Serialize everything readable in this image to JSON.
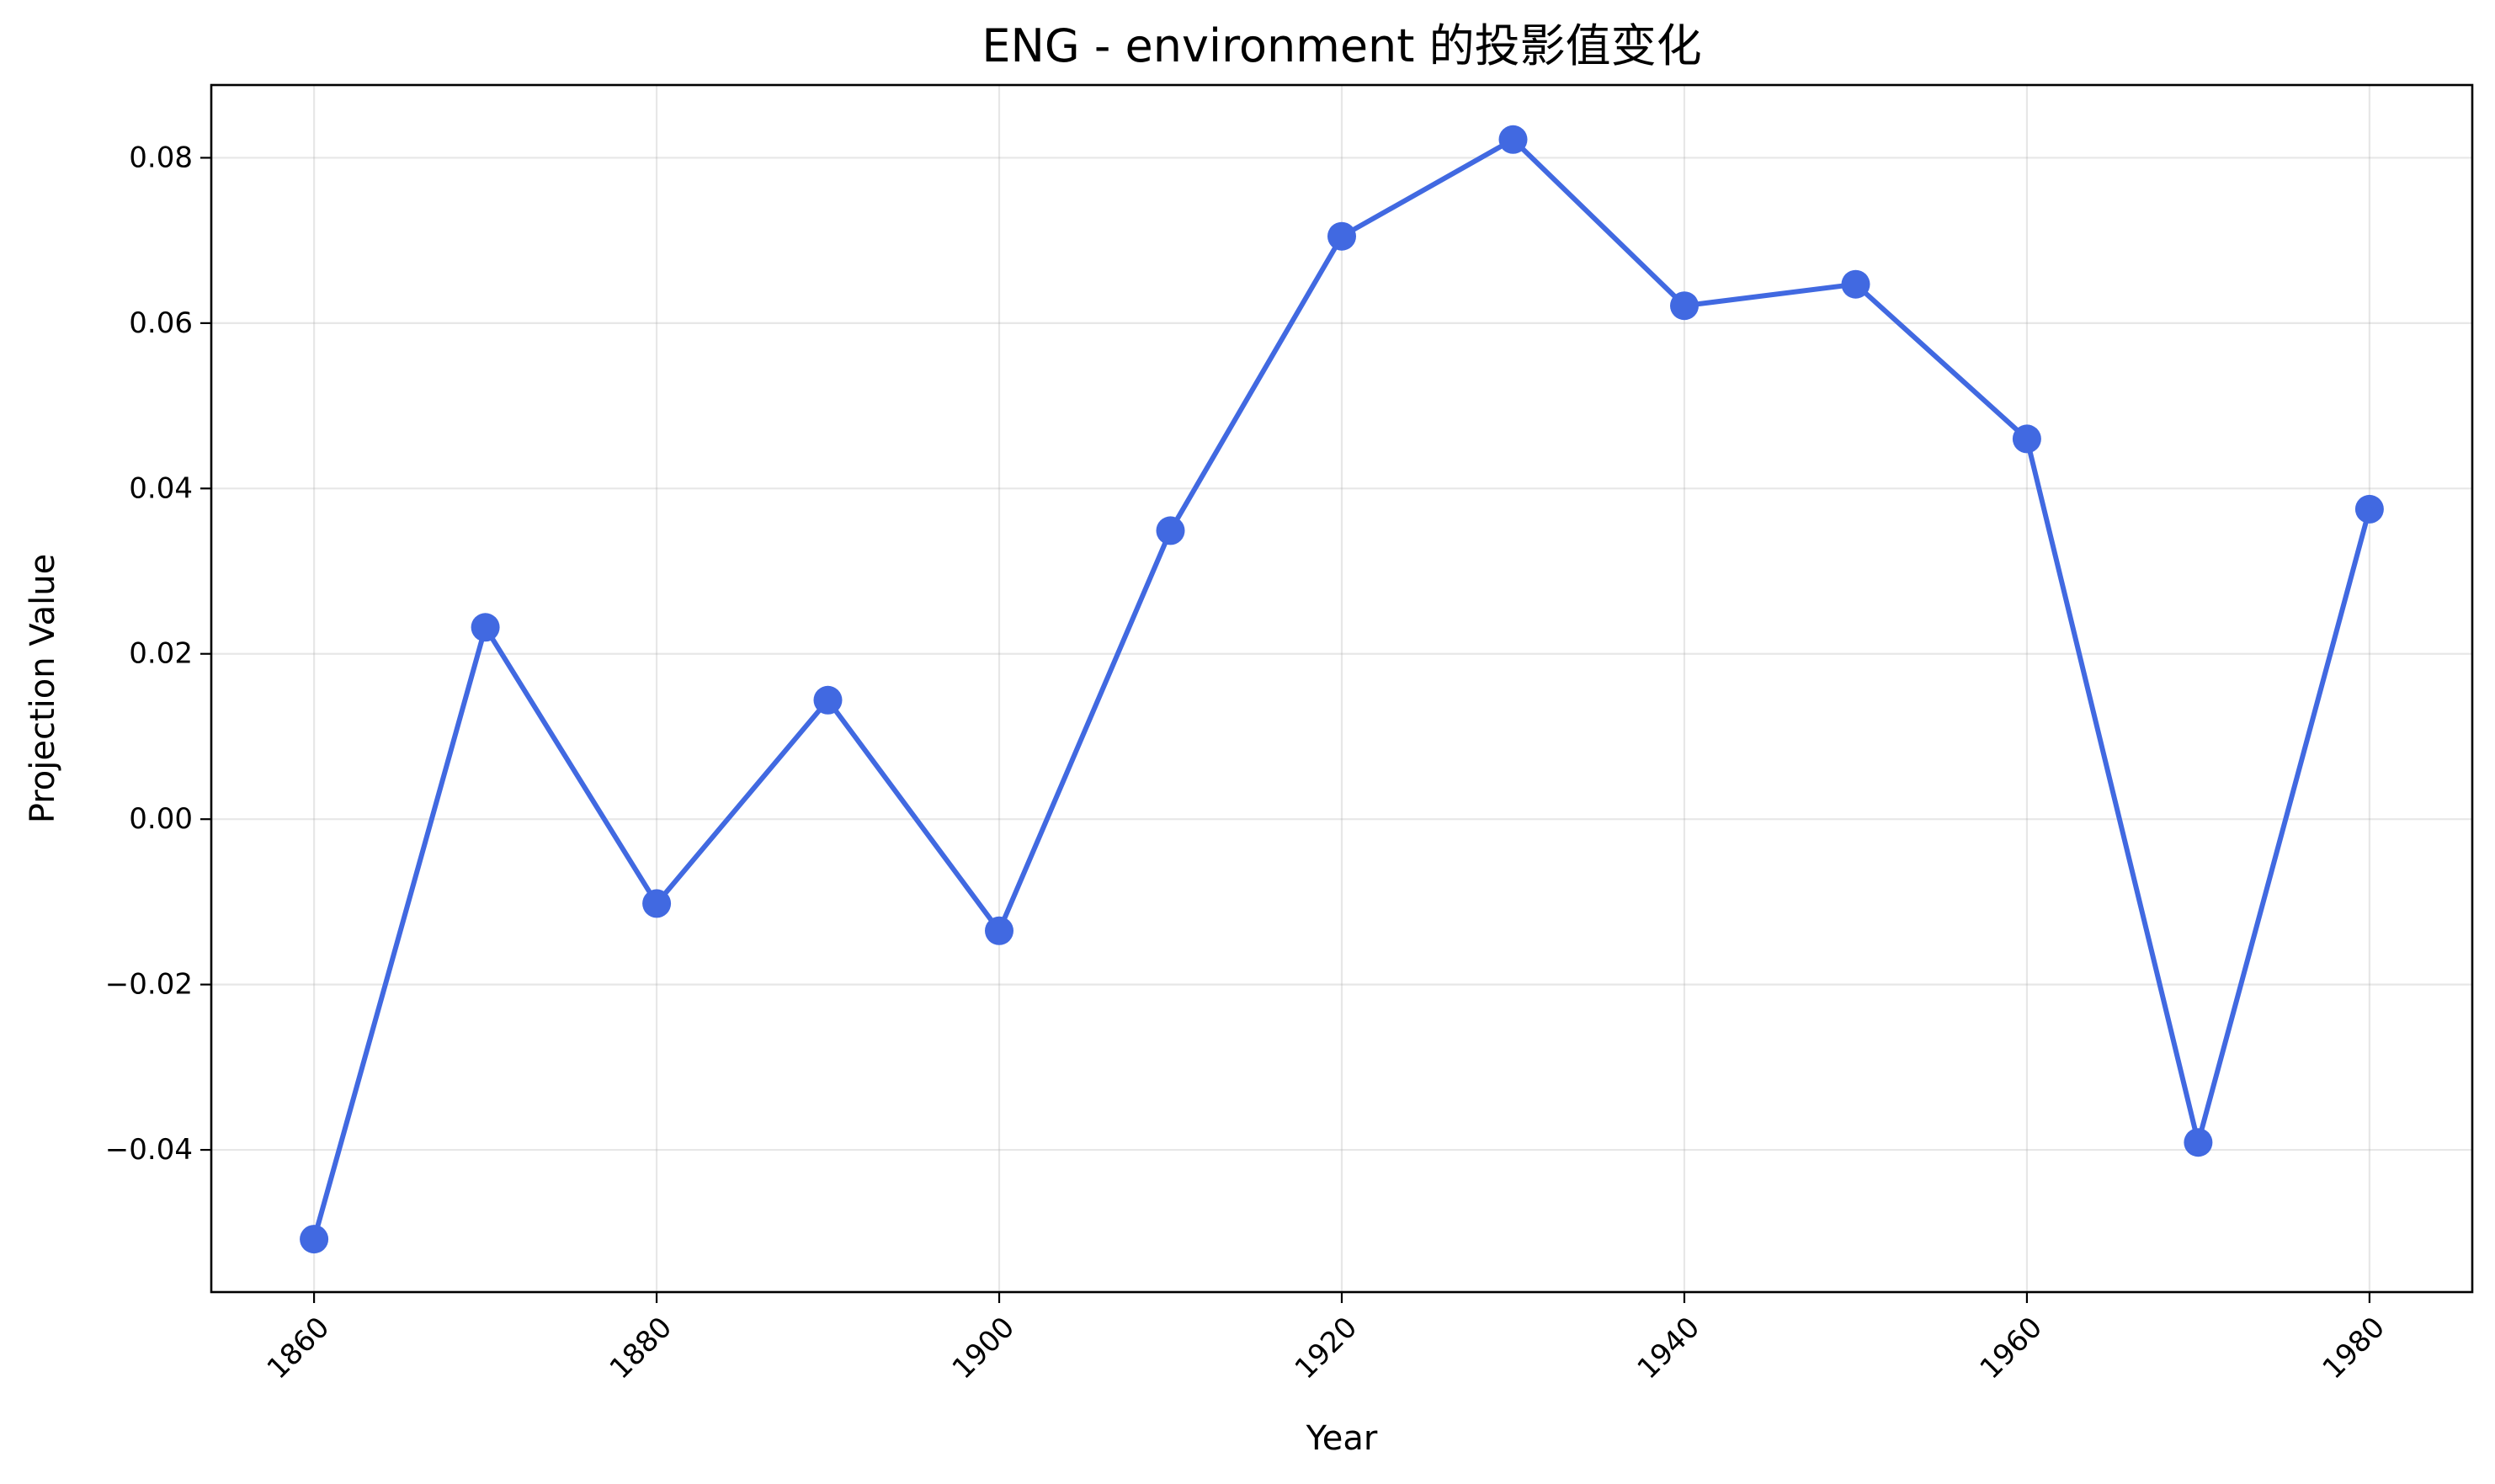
{
  "chart_data": {
    "type": "line",
    "title": "ENG - environment 的投影值变化",
    "xlabel": "Year",
    "ylabel": "Projection Value",
    "x": [
      1860,
      1870,
      1880,
      1890,
      1900,
      1910,
      1920,
      1930,
      1940,
      1950,
      1960,
      1970,
      1980
    ],
    "series": [
      {
        "name": "",
        "color": "#4169e1",
        "marker": "circle",
        "values": [
          -0.0508,
          0.0232,
          -0.0102,
          0.0144,
          -0.0135,
          0.0349,
          0.0705,
          0.0822,
          0.0621,
          0.0647,
          0.046,
          -0.0391,
          0.0375
        ]
      }
    ],
    "xlim": [
      1854,
      1986
    ],
    "ylim": [
      -0.0572,
      0.0888
    ],
    "xticks": [
      1860,
      1880,
      1900,
      1920,
      1940,
      1960,
      1980
    ],
    "xtick_labels": [
      "1860",
      "1880",
      "1900",
      "1920",
      "1940",
      "1960",
      "1980"
    ],
    "yticks": [
      -0.04,
      -0.02,
      0.0,
      0.02,
      0.04,
      0.06,
      0.08
    ],
    "ytick_labels": [
      "−0.04",
      "−0.02",
      "0.00",
      "0.02",
      "0.04",
      "0.06",
      "0.08"
    ],
    "grid": true,
    "legend": "none"
  }
}
